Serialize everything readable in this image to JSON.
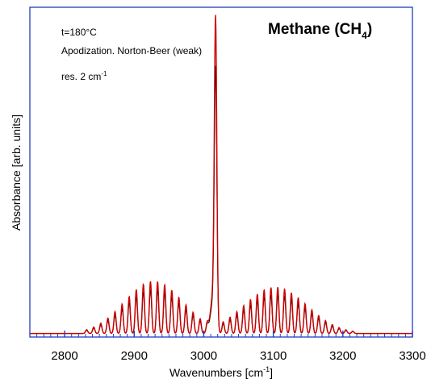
{
  "chart_data": {
    "type": "line",
    "title": {
      "main": "Methane (CH",
      "sub": "4",
      "close": ")"
    },
    "annotations": [
      {
        "text": "t=180°C"
      },
      {
        "text": "Apodization. Norton-Beer (weak)"
      },
      {
        "text": "res. 2 cm",
        "sup": "-1"
      }
    ],
    "xlabel": {
      "main": "Wavenumbers [cm",
      "sup": "-1",
      "close": "]"
    },
    "ylabel": "Absorbance [arb. units]",
    "xlim": [
      2750,
      3300
    ],
    "ylim": [
      0,
      1.1
    ],
    "x_ticks": [
      2800,
      2900,
      3000,
      3100,
      3200,
      3300
    ],
    "x_minor_step": 10,
    "grid": false,
    "series": [
      {
        "color": "#000000",
        "scale": 0.84,
        "baseline": 0.012
      },
      {
        "color": "#cc0000",
        "scale": 1.0,
        "baseline": 0.012
      }
    ],
    "bands": {
      "q_branch": {
        "center": 3017,
        "peak": 1.0
      },
      "p_branch": {
        "x_start": 2830,
        "x_end": 3005,
        "spacing": 10.2,
        "envelope_center": 2928,
        "envelope_width": 42,
        "peak": 0.175
      },
      "r_branch": {
        "x_start": 3028,
        "x_end": 3215,
        "spacing": 9.8,
        "envelope_center": 3103,
        "envelope_width": 45,
        "peak": 0.155
      }
    },
    "colors": {
      "axis": "#1f3fbf",
      "plot_bg": "#ffffff"
    }
  }
}
